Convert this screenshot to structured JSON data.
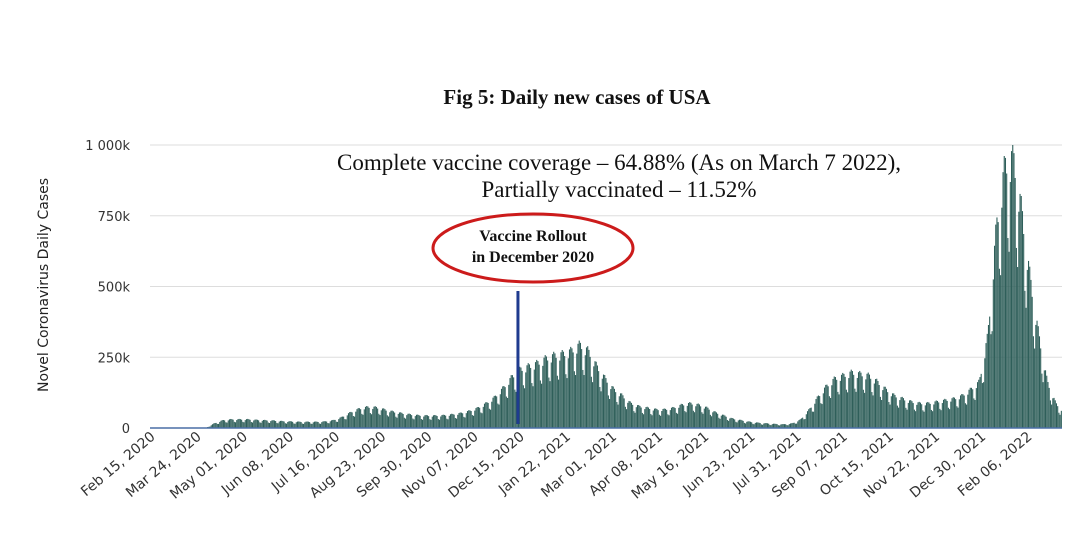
{
  "chart_data": {
    "type": "bar",
    "title": "Fig 5: Daily new cases of USA",
    "ylabel": "Novel Coronavirus Daily Cases",
    "xlabel": "",
    "ylim": [
      0,
      1000000
    ],
    "y_ticks": [
      {
        "value": 0,
        "label": "0"
      },
      {
        "value": 250000,
        "label": "250k"
      },
      {
        "value": 500000,
        "label": "500k"
      },
      {
        "value": 750000,
        "label": "750k"
      },
      {
        "value": 1000000,
        "label": "1 000k"
      }
    ],
    "grid": true,
    "x_start": "2020-02-15",
    "x_end": "2022-03-07",
    "x_tick_labels": [
      "Feb 15, 2020",
      "Mar 24, 2020",
      "May 01, 2020",
      "Jun 08, 2020",
      "Jul 16, 2020",
      "Aug 23, 2020",
      "Sep 30, 2020",
      "Nov 07, 2020",
      "Dec 15, 2020",
      "Jan 22, 2021",
      "Mar 01, 2021",
      "Apr 08, 2021",
      "May 16, 2021",
      "Jun 23, 2021",
      "Jul 31, 2021",
      "Sep 07, 2021",
      "Oct 15, 2021",
      "Nov 22, 2021",
      "Dec 30, 2021",
      "Feb 06, 2022"
    ],
    "series": [
      {
        "name": "Daily new cases",
        "color": "#2f5f5a",
        "weekly_values": [
          0,
          0,
          0,
          0,
          0,
          0,
          0,
          15000,
          25000,
          28000,
          28000,
          28000,
          26000,
          25000,
          24000,
          22000,
          21000,
          20000,
          20000,
          20000,
          21000,
          25000,
          35000,
          50000,
          62000,
          68000,
          67000,
          60000,
          53000,
          48000,
          44000,
          41000,
          40000,
          40000,
          41000,
          44000,
          48000,
          55000,
          65000,
          80000,
          100000,
          130000,
          165000,
          190000,
          200000,
          210000,
          225000,
          235000,
          240000,
          250000,
          270000,
          250000,
          200000,
          160000,
          125000,
          105000,
          80000,
          70000,
          65000,
          60000,
          60000,
          65000,
          75000,
          80000,
          75000,
          65000,
          50000,
          40000,
          30000,
          25000,
          20000,
          17000,
          15000,
          13000,
          12000,
          15000,
          28000,
          60000,
          100000,
          135000,
          160000,
          170000,
          180000,
          175000,
          170000,
          150000,
          125000,
          105000,
          95000,
          85000,
          80000,
          80000,
          85000,
          90000,
          95000,
          105000,
          125000,
          150000,
          300000,
          650000,
          850000,
          880000,
          700000,
          480000,
          300000,
          150000,
          80000,
          50000,
          40000,
          30000
        ]
      }
    ],
    "annotations": {
      "vaccine_line_label_1": "Vaccine Rollout",
      "vaccine_line_label_2": "in December 2020",
      "vaccine_date": "2020-12-14",
      "coverage_line_1": "Complete vaccine coverage – 64.88% (As on March 7 2022),",
      "coverage_line_2": "Partially vaccinated – 11.52%"
    }
  },
  "colors": {
    "bars": "#2f5f5a",
    "grid": "#dddddd",
    "axis": "#4a6fa5",
    "vaccine_line": "#1f3b8f",
    "ellipse": "#cc1b1b",
    "text": "#111111",
    "tick_text": "#333333"
  }
}
